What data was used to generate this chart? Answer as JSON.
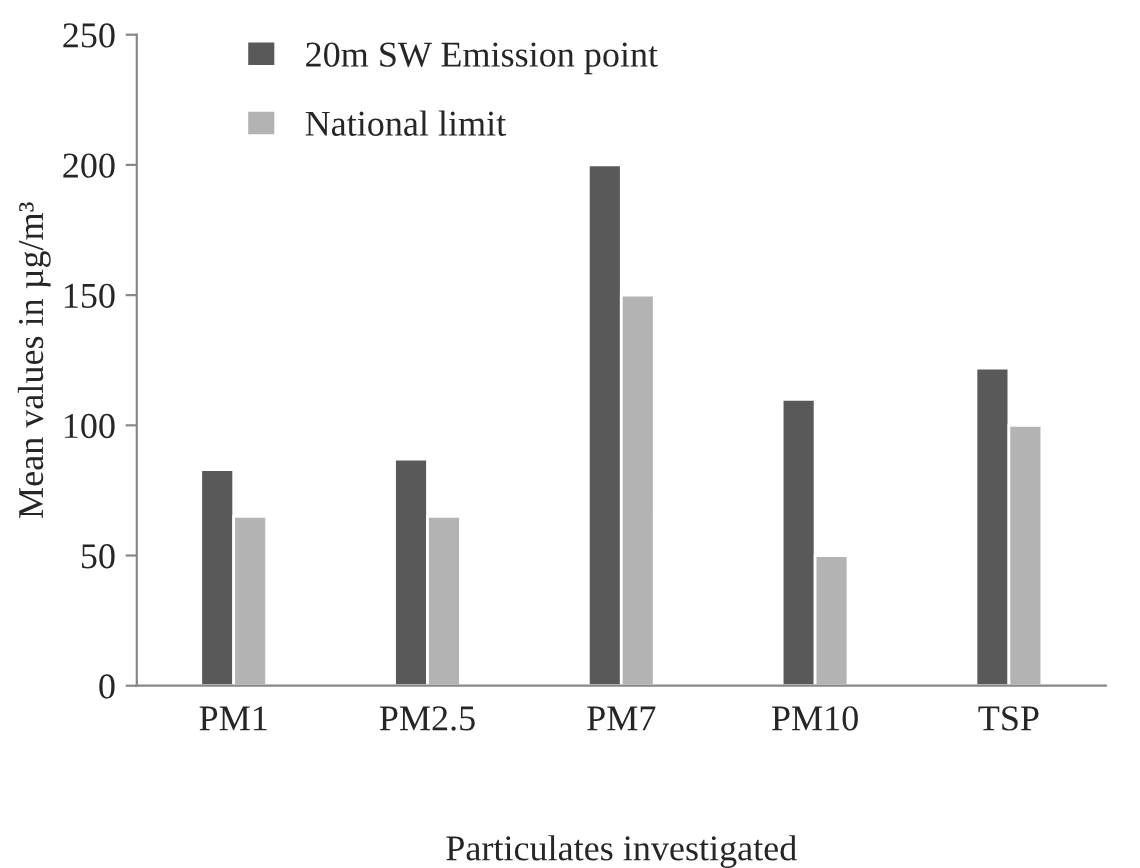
{
  "chart_data": {
    "type": "bar",
    "xlabel": "Particulates investigated",
    "ylabel": "Mean values in µg/m³",
    "categories": [
      "PM1",
      "PM2.5",
      "PM7",
      "PM10",
      "TSP"
    ],
    "series": [
      {
        "name": "20m SW Emission point",
        "color": "#595959",
        "values": [
          83,
          87,
          200,
          110,
          122
        ]
      },
      {
        "name": "National limit",
        "color": "#b3b3b3",
        "values": [
          65,
          65,
          150,
          50,
          100
        ]
      }
    ],
    "ylim": [
      0,
      250
    ],
    "yticks": [
      0,
      50,
      100,
      150,
      200,
      250
    ],
    "grid": false,
    "legend": "top left"
  }
}
